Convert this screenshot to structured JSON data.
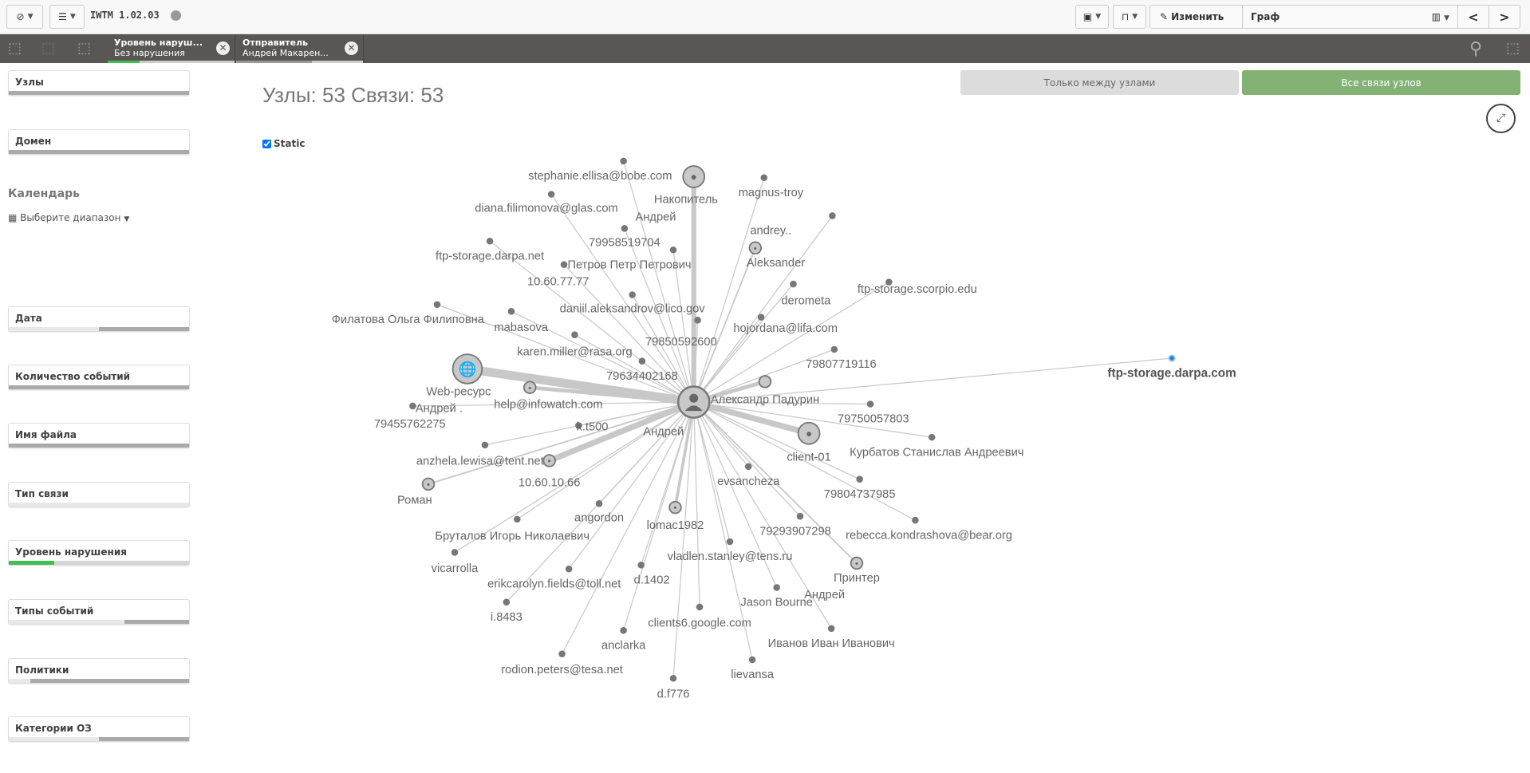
{
  "app": {
    "title": "IWTM 1.02.03",
    "nav_icon": "compass-icon",
    "list_icon": "list-icon"
  },
  "toolbar": {
    "edit_label": "Изменить",
    "sheet_name": "Граф",
    "present_icon": "presentation-icon",
    "bookmark_icon": "bookmark-icon",
    "chart_icon": "bar-chart-icon"
  },
  "selections": [
    {
      "title": "Уровень наруш...",
      "value": "Без нарушения"
    },
    {
      "title": "Отправитель",
      "value": "Андрей Макарен..."
    }
  ],
  "colors": {
    "accent_green": "#84b274",
    "dark_bar": "#595654",
    "selected_green": "#3fbf4f",
    "highlight_node": "#2a7fd4"
  },
  "sidebar": {
    "filters_top": [
      {
        "label": "Узлы",
        "fill": 1.0
      },
      {
        "label": "Домен",
        "fill": 1.0
      }
    ],
    "calendar": {
      "title": "Календарь",
      "placeholder": "Выберите диапазон"
    },
    "filters": [
      {
        "label": "Дата",
        "fill_from": 0.5
      },
      {
        "label": "Количество событий",
        "fill_from": 0.0
      },
      {
        "label": "Имя файла",
        "fill_from": 0.0
      },
      {
        "label": "Тип связи",
        "fill_from": 1.0
      },
      {
        "label": "Уровень нарушения",
        "selected": 0.25
      },
      {
        "label": "Типы событий",
        "fill_from": 0.64
      },
      {
        "label": "Политики",
        "fill_from": 0.12
      },
      {
        "label": "Категории ОЗ",
        "fill_from": 0.5
      }
    ]
  },
  "main": {
    "headline": "Узлы: 53 Связи: 53",
    "mode_buttons": [
      {
        "label": "Только между узлами",
        "active": false
      },
      {
        "label": "Все связи узлов",
        "active": true
      }
    ],
    "static_label": "Static",
    "static_checked": true
  },
  "graph": {
    "center": {
      "label": "Андрей",
      "label2": "Александр Падурин"
    },
    "nodes": [
      "stephanie.ellisa@bobe.com",
      "Накопитель",
      "magnus-troy",
      "diana.filimonova@glas.com",
      "79958519704",
      "andrey..",
      "Aleksander",
      "Петров Петр Петрович",
      "ftp-storage.darpa.net",
      "10.60.77.77",
      "derometa",
      "ftp-storage.scorpio.edu",
      "daniil.aleksandrov@lico.gov",
      "Филатова Ольга Филиповна",
      "mabasova",
      "hojordana@lifa.com",
      "79850592600",
      "karen.miller@rasa.org",
      "79807719116",
      "79634402168",
      "Web-ресурс",
      "help@infowatch.com",
      "79455762275",
      "k.t500",
      "79750057803",
      "client-01",
      "anzhela.lewisa@tent.net",
      "10.60.10.66",
      "Курбатов Станислав Андреевич",
      "evsancheza",
      "Роман",
      "79804737985",
      "angordon",
      "lomac1982",
      "79293907298",
      "rebecca.kondrashova@bear.org",
      "Бруталов Игорь Николаевич",
      "vladlen.stanley@tens.ru",
      "vicarrolla",
      "Принтер",
      "erikcarolyn.fields@toll.net",
      "d.1402",
      "Jason Bourne",
      "i.8483",
      "clients6.google.com",
      "Иванов Иван Иванович",
      "anclarka",
      "rodion.peters@tesa.net",
      "lievansa",
      "d.f776",
      "ftp-storage.darpa.com"
    ],
    "extra_labels": [
      "Андрей",
      "Андрей .",
      "Андрей"
    ]
  }
}
